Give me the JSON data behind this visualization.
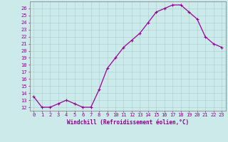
{
  "x": [
    0,
    1,
    2,
    3,
    4,
    5,
    6,
    7,
    8,
    9,
    10,
    11,
    12,
    13,
    14,
    15,
    16,
    17,
    18,
    19,
    20,
    21,
    22,
    23
  ],
  "y": [
    13.5,
    12.0,
    12.0,
    12.5,
    13.0,
    12.5,
    12.0,
    12.0,
    14.5,
    17.5,
    19.0,
    20.5,
    21.5,
    22.5,
    24.0,
    25.5,
    26.0,
    26.5,
    26.5,
    25.5,
    24.5,
    22.0,
    21.0,
    20.5
  ],
  "line_color": "#990099",
  "marker": "+",
  "markersize": 3,
  "linewidth": 0.9,
  "xlabel": "Windchill (Refroidissement éolien,°C)",
  "xlabel_fontsize": 5.5,
  "yticks": [
    12,
    13,
    14,
    15,
    16,
    17,
    18,
    19,
    20,
    21,
    22,
    23,
    24,
    25,
    26
  ],
  "ylim": [
    11.5,
    27.0
  ],
  "xlim": [
    -0.5,
    23.5
  ],
  "xticks": [
    0,
    1,
    2,
    3,
    4,
    5,
    6,
    7,
    8,
    9,
    10,
    11,
    12,
    13,
    14,
    15,
    16,
    17,
    18,
    19,
    20,
    21,
    22,
    23
  ],
  "grid_color": "#aed4d4",
  "bg_color": "#cceaea",
  "tick_color": "#880088",
  "tick_fontsize": 5.0,
  "border_color": "#888888"
}
